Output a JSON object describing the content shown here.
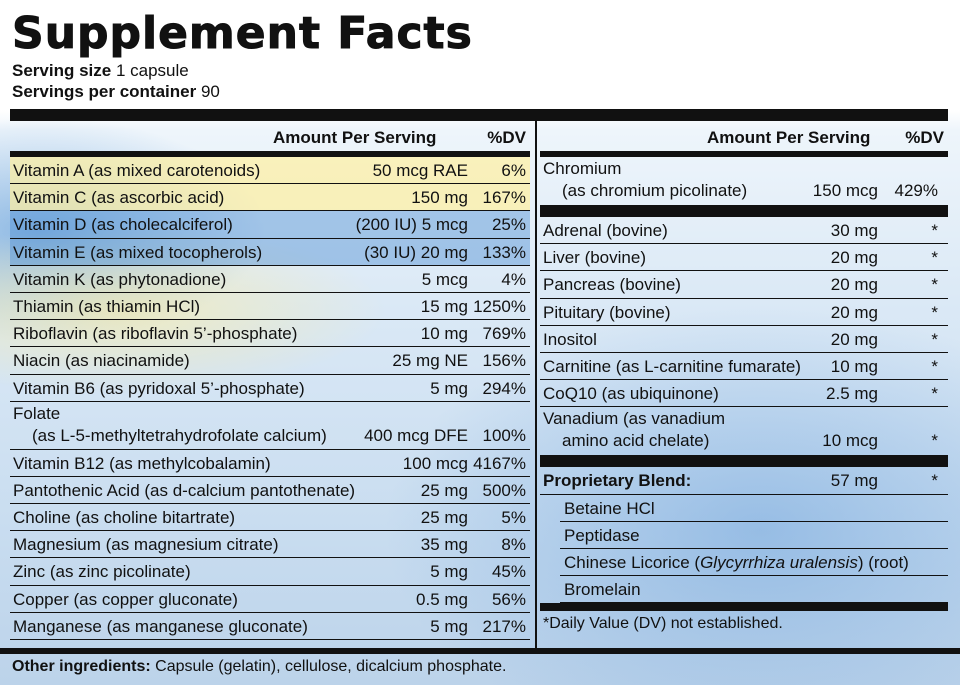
{
  "header": {
    "title": "Supplement Facts",
    "serving_size_label": "Serving size",
    "serving_size_value": "1 capsule",
    "servings_label": "Servings per container",
    "servings_value": "90"
  },
  "left": {
    "amount_header": "Amount Per Serving",
    "dv_header": "%DV",
    "rows": [
      {
        "name": "Vitamin A (as mixed carotenoids)",
        "amount": "50 mcg RAE",
        "dv": "6%"
      },
      {
        "name": "Vitamin C (as ascorbic acid)",
        "amount": "150 mg",
        "dv": "167%"
      },
      {
        "name": "Vitamin D (as cholecalciferol)",
        "amount": "(200 IU) 5 mcg",
        "dv": "25%"
      },
      {
        "name": "Vitamin E (as mixed tocopherols)",
        "amount": "(30 IU) 20 mg",
        "dv": "133%"
      },
      {
        "name": "Vitamin K (as phytonadione)",
        "amount": "5 mcg",
        "dv": "4%"
      },
      {
        "name": "Thiamin (as thiamin HCl)",
        "amount": "15 mg",
        "dv": "1250%"
      },
      {
        "name": "Riboflavin (as riboflavin 5’-phosphate)",
        "amount": "10 mg",
        "dv": "769%"
      },
      {
        "name": "Niacin (as niacinamide)",
        "amount": "25 mg NE",
        "dv": "156%"
      },
      {
        "name": "Vitamin B6 (as pyridoxal 5’-phosphate)",
        "amount": "5 mg",
        "dv": "294%"
      }
    ],
    "folate": {
      "line1": "Folate",
      "line2": "(as L-5-methyltetrahydrofolate calcium)",
      "amount": "400 mcg DFE",
      "dv": "100%"
    },
    "rows2": [
      {
        "name": "Vitamin B12 (as methylcobalamin)",
        "amount": "100 mcg",
        "dv": "4167%"
      },
      {
        "name": "Pantothenic Acid (as d-calcium pantothenate)",
        "amount": "25 mg",
        "dv": "500%"
      },
      {
        "name": "Choline (as choline bitartrate)",
        "amount": "25 mg",
        "dv": "5%"
      },
      {
        "name": "Magnesium (as magnesium citrate)",
        "amount": "35 mg",
        "dv": "8%"
      },
      {
        "name": "Zinc (as zinc picolinate)",
        "amount": "5 mg",
        "dv": "45%"
      },
      {
        "name": "Copper (as copper gluconate)",
        "amount": "0.5 mg",
        "dv": "56%"
      },
      {
        "name": "Manganese (as manganese gluconate)",
        "amount": "5 mg",
        "dv": "217%"
      }
    ]
  },
  "right": {
    "amount_header": "Amount Per Serving",
    "dv_header": "%DV",
    "chromium": {
      "line1": "Chromium",
      "line2": "(as chromium picolinate)",
      "amount": "150 mcg",
      "dv": "429%"
    },
    "rows": [
      {
        "name": "Adrenal (bovine)",
        "amount": "30 mg",
        "dv": "*"
      },
      {
        "name": "Liver (bovine)",
        "amount": "20 mg",
        "dv": "*"
      },
      {
        "name": "Pancreas (bovine)",
        "amount": "20 mg",
        "dv": "*"
      },
      {
        "name": "Pituitary (bovine)",
        "amount": "20 mg",
        "dv": "*"
      },
      {
        "name": "Inositol",
        "amount": "20 mg",
        "dv": "*"
      },
      {
        "name": "Carnitine (as L-carnitine fumarate)",
        "amount": "10 mg",
        "dv": "*"
      },
      {
        "name": "CoQ10 (as ubiquinone)",
        "amount": "2.5 mg",
        "dv": "*"
      }
    ],
    "vanadium": {
      "line1": "Vanadium (as vanadium",
      "line2": "amino acid chelate)",
      "amount": "10 mcg",
      "dv": "*"
    },
    "blend": {
      "label": "Proprietary Blend:",
      "amount": "57 mg",
      "dv": "*",
      "items": [
        "Betaine HCl",
        "Peptidase",
        "Chinese Licorice (Glycyrrhiza uralensis) (root)",
        "Bromelain"
      ]
    },
    "footnote": "*Daily Value (DV) not established."
  },
  "footer": {
    "other_label": "Other ingredients:",
    "other_value": "Capsule (gelatin), cellulose, dicalcium phosphate."
  }
}
